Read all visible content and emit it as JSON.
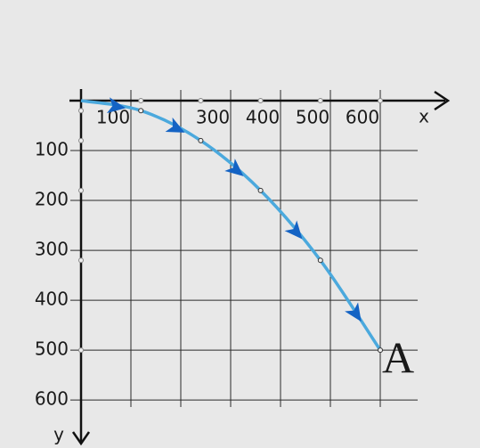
{
  "chart_data": {
    "type": "line",
    "x": [
      0,
      120,
      240,
      360,
      480,
      600
    ],
    "values": [
      0,
      20,
      80,
      180,
      320,
      500
    ],
    "color": "#4ba9dd",
    "arrow_color": "#1463c4",
    "point_label": "A",
    "x_label": "x",
    "y_label": "y",
    "xlim": [
      0,
      675
    ],
    "ylim": [
      0,
      614
    ],
    "y_inverted": true,
    "grid": true,
    "xticks": [
      {
        "value": 100,
        "label": "100"
      },
      {
        "value": 200,
        "label": null
      },
      300,
      400,
      500,
      600
    ],
    "yticks": [
      100,
      200,
      300,
      400,
      500,
      600
    ]
  }
}
